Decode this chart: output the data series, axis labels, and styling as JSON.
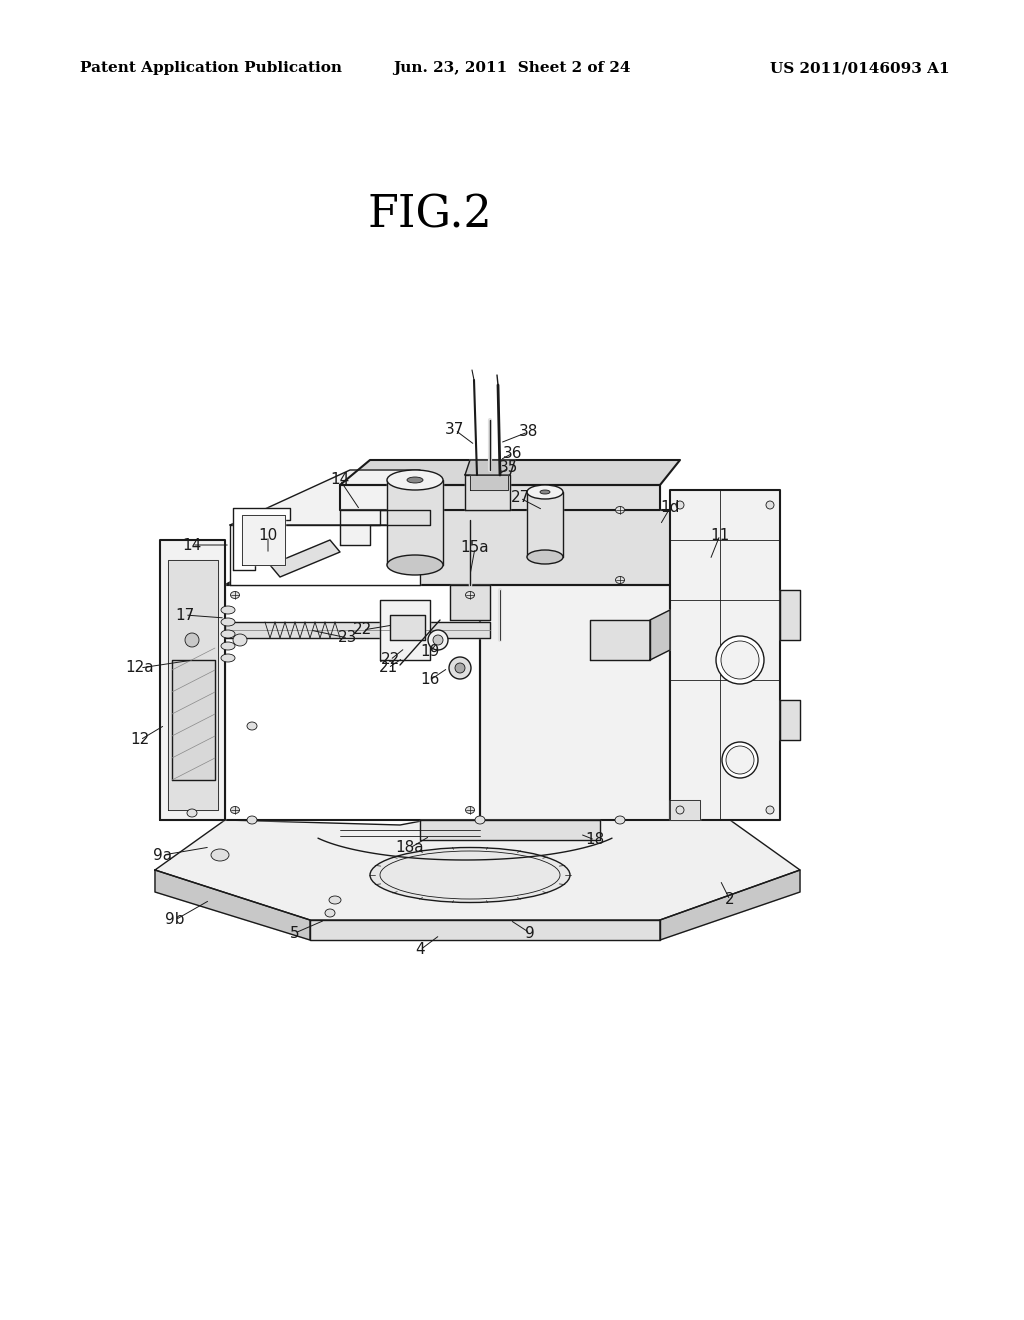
{
  "header_left": "Patent Application Publication",
  "header_center": "Jun. 23, 2011  Sheet 2 of 24",
  "header_right": "US 2011/0146093 A1",
  "figure_label": "FIG.2",
  "background_color": "#ffffff",
  "line_color": "#1a1a1a",
  "fig_width": 10.24,
  "fig_height": 13.2,
  "dpi": 100
}
